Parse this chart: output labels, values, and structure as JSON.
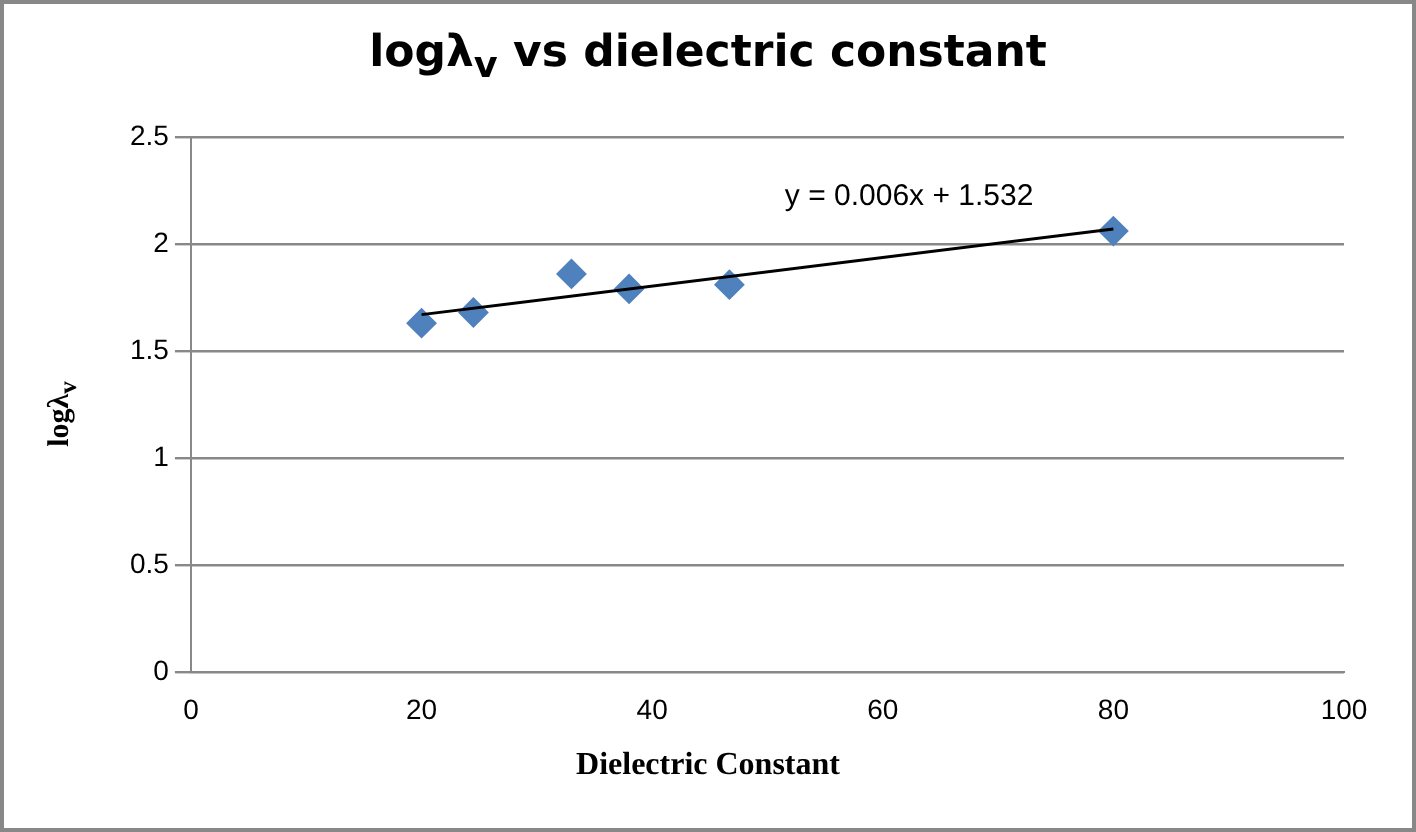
{
  "chart_data": {
    "type": "scatter",
    "title": "logλ$_{v}$ vs dielectric constant",
    "xlabel": "Dielectric Constant",
    "ylabel": "logλ$_{v}$",
    "xlim": [
      0,
      100
    ],
    "xticks": [
      0,
      20,
      40,
      60,
      80,
      100
    ],
    "ylim": [
      0,
      2.5
    ],
    "yticks": [
      0,
      0.5,
      1,
      1.5,
      2,
      2.5
    ],
    "grid": "y",
    "legend": false,
    "marker": "diamond",
    "series": [
      {
        "color": "#4f81bd",
        "x": [
          20,
          24.5,
          33,
          38,
          46.7,
          80
        ],
        "values": [
          1.63,
          1.68,
          1.86,
          1.79,
          1.81,
          2.06
        ]
      },
      {
        "type": "line",
        "color": "#000000",
        "marker": "none",
        "x": [
          20,
          80
        ],
        "values": [
          1.67,
          2.07
        ]
      }
    ],
    "annotations": [
      "y = 0.006x + 1.532"
    ]
  }
}
